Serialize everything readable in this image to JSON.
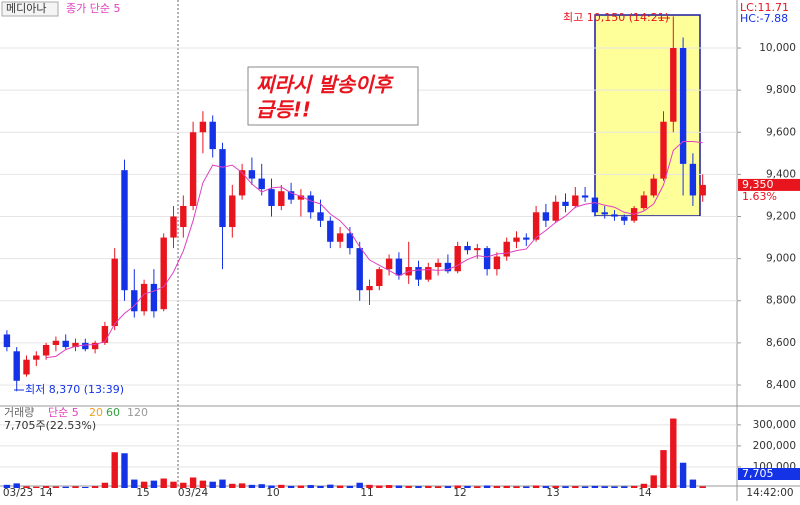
{
  "header": {
    "symbol": "메디아나",
    "indicator": "종가 단순 5",
    "lc": "LC:11.71",
    "hc": "HC:-7.88"
  },
  "annotation": {
    "line1": "찌라시 발송이후",
    "line2": "급등!!"
  },
  "chart_data": {
    "type": "candlestick",
    "open": [
      8640,
      8560,
      8450,
      8520,
      8540,
      8590,
      8610,
      8580,
      8600,
      8570,
      8600,
      8680,
      9420,
      8850,
      8750,
      8880,
      8760,
      9100,
      9150,
      9250,
      9600,
      9650,
      9520,
      9150,
      9300,
      9420,
      9380,
      9330,
      9250,
      9320,
      9280,
      9300,
      9220,
      9180,
      9080,
      9120,
      9050,
      8850,
      8870,
      8950,
      9000,
      8920,
      8960,
      8900,
      8960,
      8980,
      8940,
      9060,
      9040,
      9050,
      8950,
      9010,
      9080,
      9100,
      9090,
      9220,
      9180,
      9270,
      9250,
      9300,
      9290,
      9220,
      9210,
      9200,
      9180,
      9240,
      9300,
      9380,
      9650,
      10000,
      9450,
      9300
    ],
    "high": [
      8660,
      8580,
      8540,
      8560,
      8600,
      8630,
      8640,
      8620,
      8620,
      8610,
      8700,
      9050,
      9470,
      8950,
      8900,
      8950,
      9120,
      9250,
      9300,
      9650,
      9700,
      9680,
      9550,
      9350,
      9450,
      9480,
      9450,
      9380,
      9350,
      9360,
      9330,
      9320,
      9280,
      9200,
      9150,
      9150,
      9080,
      8900,
      8960,
      9020,
      9030,
      9080,
      8990,
      8980,
      9000,
      9020,
      9080,
      9080,
      9070,
      9060,
      9030,
      9100,
      9130,
      9120,
      9250,
      9260,
      9300,
      9310,
      9340,
      9340,
      9320,
      9250,
      9230,
      9210,
      9250,
      9320,
      9400,
      9700,
      10150,
      10050,
      9500,
      9400
    ],
    "low": [
      8560,
      8370,
      8440,
      8490,
      8520,
      8560,
      8570,
      8560,
      8560,
      8550,
      8590,
      8660,
      8800,
      8720,
      8730,
      8720,
      8750,
      9050,
      9100,
      9230,
      9500,
      9480,
      8950,
      9100,
      9280,
      9350,
      9300,
      9200,
      9230,
      9260,
      9200,
      9190,
      9150,
      9050,
      9050,
      9020,
      8800,
      8780,
      8850,
      8920,
      8900,
      8880,
      8870,
      8890,
      8920,
      8930,
      8930,
      9020,
      9000,
      8920,
      8920,
      8990,
      9050,
      9060,
      9080,
      9150,
      9170,
      9220,
      9240,
      9270,
      9200,
      9190,
      9180,
      9160,
      9170,
      9230,
      9290,
      9370,
      9600,
      9300,
      9250,
      9270
    ],
    "close": [
      8580,
      8420,
      8520,
      8540,
      8590,
      8610,
      8580,
      8600,
      8570,
      8600,
      8680,
      9000,
      8850,
      8750,
      8880,
      8750,
      9100,
      9200,
      9250,
      9600,
      9650,
      9520,
      9150,
      9300,
      9420,
      9380,
      9330,
      9250,
      9320,
      9280,
      9300,
      9220,
      9180,
      9080,
      9120,
      9050,
      8850,
      8870,
      8950,
      9000,
      8920,
      8960,
      8900,
      8960,
      8980,
      8940,
      9060,
      9040,
      9050,
      8950,
      9010,
      9080,
      9100,
      9090,
      9220,
      9180,
      9270,
      9250,
      9300,
      9290,
      9220,
      9210,
      9200,
      9180,
      9240,
      9300,
      9380,
      9650,
      10000,
      9450,
      9300,
      9350
    ],
    "ma5": [
      null,
      null,
      null,
      null,
      8530,
      8536,
      8568,
      8584,
      8590,
      8592,
      8606,
      8690,
      8740,
      8776,
      8832,
      8846,
      8866,
      8936,
      9036,
      9180,
      9360,
      9444,
      9434,
      9444,
      9408,
      9354,
      9316,
      9336,
      9340,
      9312,
      9296,
      9274,
      9260,
      9212,
      9180,
      9130,
      9056,
      8994,
      8968,
      8944,
      8918,
      8940,
      8946,
      8948,
      8944,
      8948,
      8968,
      8996,
      9014,
      9008,
      9022,
      9026,
      9038,
      9046,
      9100,
      9134,
      9172,
      9202,
      9244,
      9258,
      9266,
      9254,
      9244,
      9220,
      9210,
      9226,
      9260,
      9350,
      9514,
      9556,
      9556,
      9550
    ],
    "volume": [
      15000,
      22000,
      8000,
      6000,
      9000,
      7000,
      6000,
      8000,
      5000,
      9000,
      25000,
      170000,
      165000,
      40000,
      30000,
      35000,
      45000,
      30000,
      25000,
      50000,
      35000,
      30000,
      40000,
      20000,
      22000,
      15000,
      18000,
      12000,
      15000,
      10000,
      12000,
      14000,
      10000,
      16000,
      12000,
      10000,
      25000,
      15000,
      12000,
      14000,
      12000,
      10000,
      9000,
      10000,
      8000,
      9000,
      12000,
      10000,
      8000,
      12000,
      9000,
      10000,
      8000,
      7000,
      12000,
      9000,
      10000,
      8000,
      9000,
      7000,
      10000,
      8000,
      7000,
      8000,
      10000,
      20000,
      60000,
      180000,
      330000,
      120000,
      40000,
      7705
    ],
    "ylim": [
      8305,
      10190
    ],
    "yticks": [
      {
        "value": 8400,
        "label": "8,400"
      },
      {
        "value": 8600,
        "label": "8,600"
      },
      {
        "value": 8800,
        "label": "8,800"
      },
      {
        "value": 9000,
        "label": "9,000"
      },
      {
        "value": 9200,
        "label": "9,200"
      },
      {
        "value": 9400,
        "label": "9,400"
      },
      {
        "value": 9600,
        "label": "9,600"
      },
      {
        "value": 9800,
        "label": "9,800"
      },
      {
        "value": 10000,
        "label": "10,000"
      }
    ],
    "vlim": [
      0,
      380000
    ],
    "vticks": [
      {
        "value": 100000,
        "label": "100,000"
      },
      {
        "value": 200000,
        "label": "200,000"
      },
      {
        "value": 300000,
        "label": "300,000"
      }
    ],
    "up_color": "#e8141e",
    "down_color": "#1432e6",
    "ma_color": "#e040c0",
    "high_label": "최고 10,150 (14:21)",
    "low_label": "최저 8,370 (13:39)",
    "last_price_label": "9,350",
    "change_label": "1.63%",
    "volume_legend": [
      "거래량",
      "단순 5",
      "20",
      "60",
      "120"
    ],
    "volume_info": "7,705주(22.53%)",
    "last_volume_label": "7,705",
    "x_labels": [
      "03/23",
      "14",
      "15",
      "03/24",
      "10",
      "11",
      "12",
      "13",
      "14"
    ],
    "time_label": "14:42:00"
  }
}
